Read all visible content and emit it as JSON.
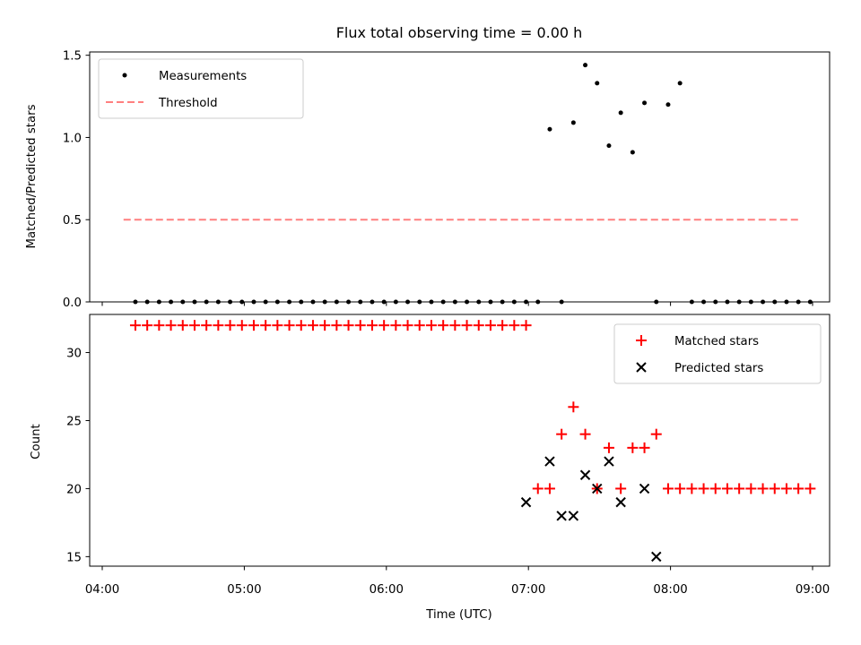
{
  "chart_data": [
    {
      "type": "scatter",
      "title": "Flux total observing time = 0.00 h",
      "xlabel": "",
      "ylabel": "Matched/Predicted stars",
      "ylim": [
        0,
        1.52
      ],
      "yticks": [
        "0.0",
        "0.5",
        "1.0",
        "1.5"
      ],
      "legend_position": "upper left",
      "series": [
        {
          "name": "Measurements",
          "marker": "dot",
          "color": "#000000",
          "x": [
            "04:14",
            "04:19",
            "04:24",
            "04:29",
            "04:34",
            "04:39",
            "04:44",
            "04:49",
            "04:54",
            "04:59",
            "05:04",
            "05:09",
            "05:14",
            "05:19",
            "05:24",
            "05:29",
            "05:34",
            "05:39",
            "05:44",
            "05:49",
            "05:54",
            "05:59",
            "06:04",
            "06:09",
            "06:14",
            "06:19",
            "06:24",
            "06:29",
            "06:34",
            "06:39",
            "06:44",
            "06:49",
            "06:54",
            "06:59",
            "07:04",
            "07:09",
            "07:14",
            "07:19",
            "07:24",
            "07:29",
            "07:34",
            "07:39",
            "07:44",
            "07:49",
            "07:54",
            "07:59",
            "08:04",
            "08:09",
            "08:14",
            "08:19",
            "08:24",
            "08:29",
            "08:34",
            "08:39",
            "08:44",
            "08:49",
            "08:54",
            "08:59"
          ],
          "y": [
            0,
            0,
            0,
            0,
            0,
            0,
            0,
            0,
            0,
            0,
            0,
            0,
            0,
            0,
            0,
            0,
            0,
            0,
            0,
            0,
            0,
            0,
            0,
            0,
            0,
            0,
            0,
            0,
            0,
            0,
            0,
            0,
            0,
            0,
            0,
            1.05,
            0,
            1.09,
            1.44,
            1.33,
            0.95,
            1.15,
            0.91,
            1.21,
            0,
            1.2,
            1.33,
            0,
            0,
            0,
            0,
            0,
            0,
            0,
            0,
            0,
            0,
            0
          ]
        },
        {
          "name": "Threshold",
          "type": "line",
          "style": "dashed",
          "color": "#ff7f7f",
          "x": [
            "04:09",
            "08:54"
          ],
          "y": [
            0.5,
            0.5
          ]
        }
      ]
    },
    {
      "type": "scatter",
      "xlabel": "Time (UTC)",
      "ylabel": "Count",
      "ylim": [
        14.3,
        32.8
      ],
      "yticks": [
        "15",
        "20",
        "25",
        "30"
      ],
      "xlim": [
        "04:00",
        "09:00"
      ],
      "xticks": [
        "04:00",
        "05:00",
        "06:00",
        "07:00",
        "08:00",
        "09:00"
      ],
      "legend_position": "upper right",
      "series": [
        {
          "name": "Matched stars",
          "marker": "plus",
          "color": "#ff0000",
          "x": [
            "04:14",
            "04:19",
            "04:24",
            "04:29",
            "04:34",
            "04:39",
            "04:44",
            "04:49",
            "04:54",
            "04:59",
            "05:04",
            "05:09",
            "05:14",
            "05:19",
            "05:24",
            "05:29",
            "05:34",
            "05:39",
            "05:44",
            "05:49",
            "05:54",
            "05:59",
            "06:04",
            "06:09",
            "06:14",
            "06:19",
            "06:24",
            "06:29",
            "06:34",
            "06:39",
            "06:44",
            "06:49",
            "06:54",
            "06:59",
            "07:04",
            "07:09",
            "07:14",
            "07:19",
            "07:24",
            "07:29",
            "07:34",
            "07:39",
            "07:44",
            "07:49",
            "07:54",
            "07:59",
            "08:04",
            "08:09",
            "08:14",
            "08:19",
            "08:24",
            "08:29",
            "08:34",
            "08:39",
            "08:44",
            "08:49",
            "08:54",
            "08:59"
          ],
          "y": [
            32,
            32,
            32,
            32,
            32,
            32,
            32,
            32,
            32,
            32,
            32,
            32,
            32,
            32,
            32,
            32,
            32,
            32,
            32,
            32,
            32,
            32,
            32,
            32,
            32,
            32,
            32,
            32,
            32,
            32,
            32,
            32,
            32,
            32,
            20,
            20,
            24,
            26,
            24,
            20,
            23,
            20,
            23,
            23,
            24,
            20,
            20,
            20,
            20,
            20,
            20,
            20,
            20,
            20,
            20,
            20,
            20,
            20
          ]
        },
        {
          "name": "Predicted stars",
          "marker": "x",
          "color": "#000000",
          "x": [
            "06:59",
            "07:09",
            "07:14",
            "07:19",
            "07:24",
            "07:29",
            "07:34",
            "07:39",
            "07:49",
            "07:54"
          ],
          "y": [
            19,
            22,
            18,
            18,
            21,
            20,
            22,
            19,
            20,
            15
          ]
        }
      ]
    }
  ]
}
